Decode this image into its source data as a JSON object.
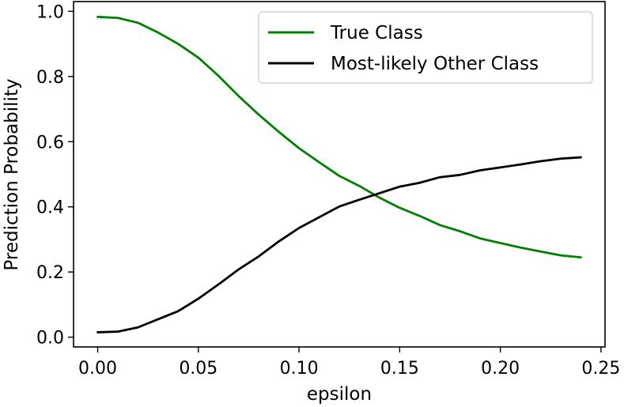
{
  "chart_data": {
    "type": "line",
    "title": "",
    "xlabel": "epsilon",
    "ylabel": "Prediction Probability",
    "xlim": [
      -0.012,
      0.252
    ],
    "ylim": [
      -0.03,
      1.03
    ],
    "grid": false,
    "legend_position": "top-right",
    "x": [
      0.0,
      0.01,
      0.02,
      0.03,
      0.04,
      0.05,
      0.06,
      0.07,
      0.08,
      0.09,
      0.1,
      0.11,
      0.12,
      0.13,
      0.14,
      0.15,
      0.16,
      0.17,
      0.18,
      0.19,
      0.2,
      0.21,
      0.22,
      0.23,
      0.24
    ],
    "series": [
      {
        "name": "True Class",
        "color": "#008000",
        "values": [
          0.983,
          0.98,
          0.965,
          0.935,
          0.9,
          0.858,
          0.802,
          0.74,
          0.683,
          0.63,
          0.58,
          0.537,
          0.495,
          0.464,
          0.428,
          0.397,
          0.372,
          0.344,
          0.325,
          0.303,
          0.289,
          0.275,
          0.263,
          0.251,
          0.245
        ]
      },
      {
        "name": "Most-likely Other Class",
        "color": "#000000",
        "values": [
          0.015,
          0.017,
          0.03,
          0.055,
          0.08,
          0.118,
          0.162,
          0.208,
          0.248,
          0.294,
          0.335,
          0.368,
          0.401,
          0.422,
          0.442,
          0.462,
          0.474,
          0.491,
          0.498,
          0.512,
          0.521,
          0.53,
          0.54,
          0.548,
          0.552
        ]
      }
    ],
    "xticks": [
      0.0,
      0.05,
      0.1,
      0.15,
      0.2,
      0.25
    ],
    "xtick_labels": [
      "0.00",
      "0.05",
      "0.10",
      "0.15",
      "0.20",
      "0.25"
    ],
    "yticks": [
      0.0,
      0.2,
      0.4,
      0.6,
      0.8,
      1.0
    ],
    "ytick_labels": [
      "0.0",
      "0.2",
      "0.4",
      "0.6",
      "0.8",
      "1.0"
    ]
  }
}
